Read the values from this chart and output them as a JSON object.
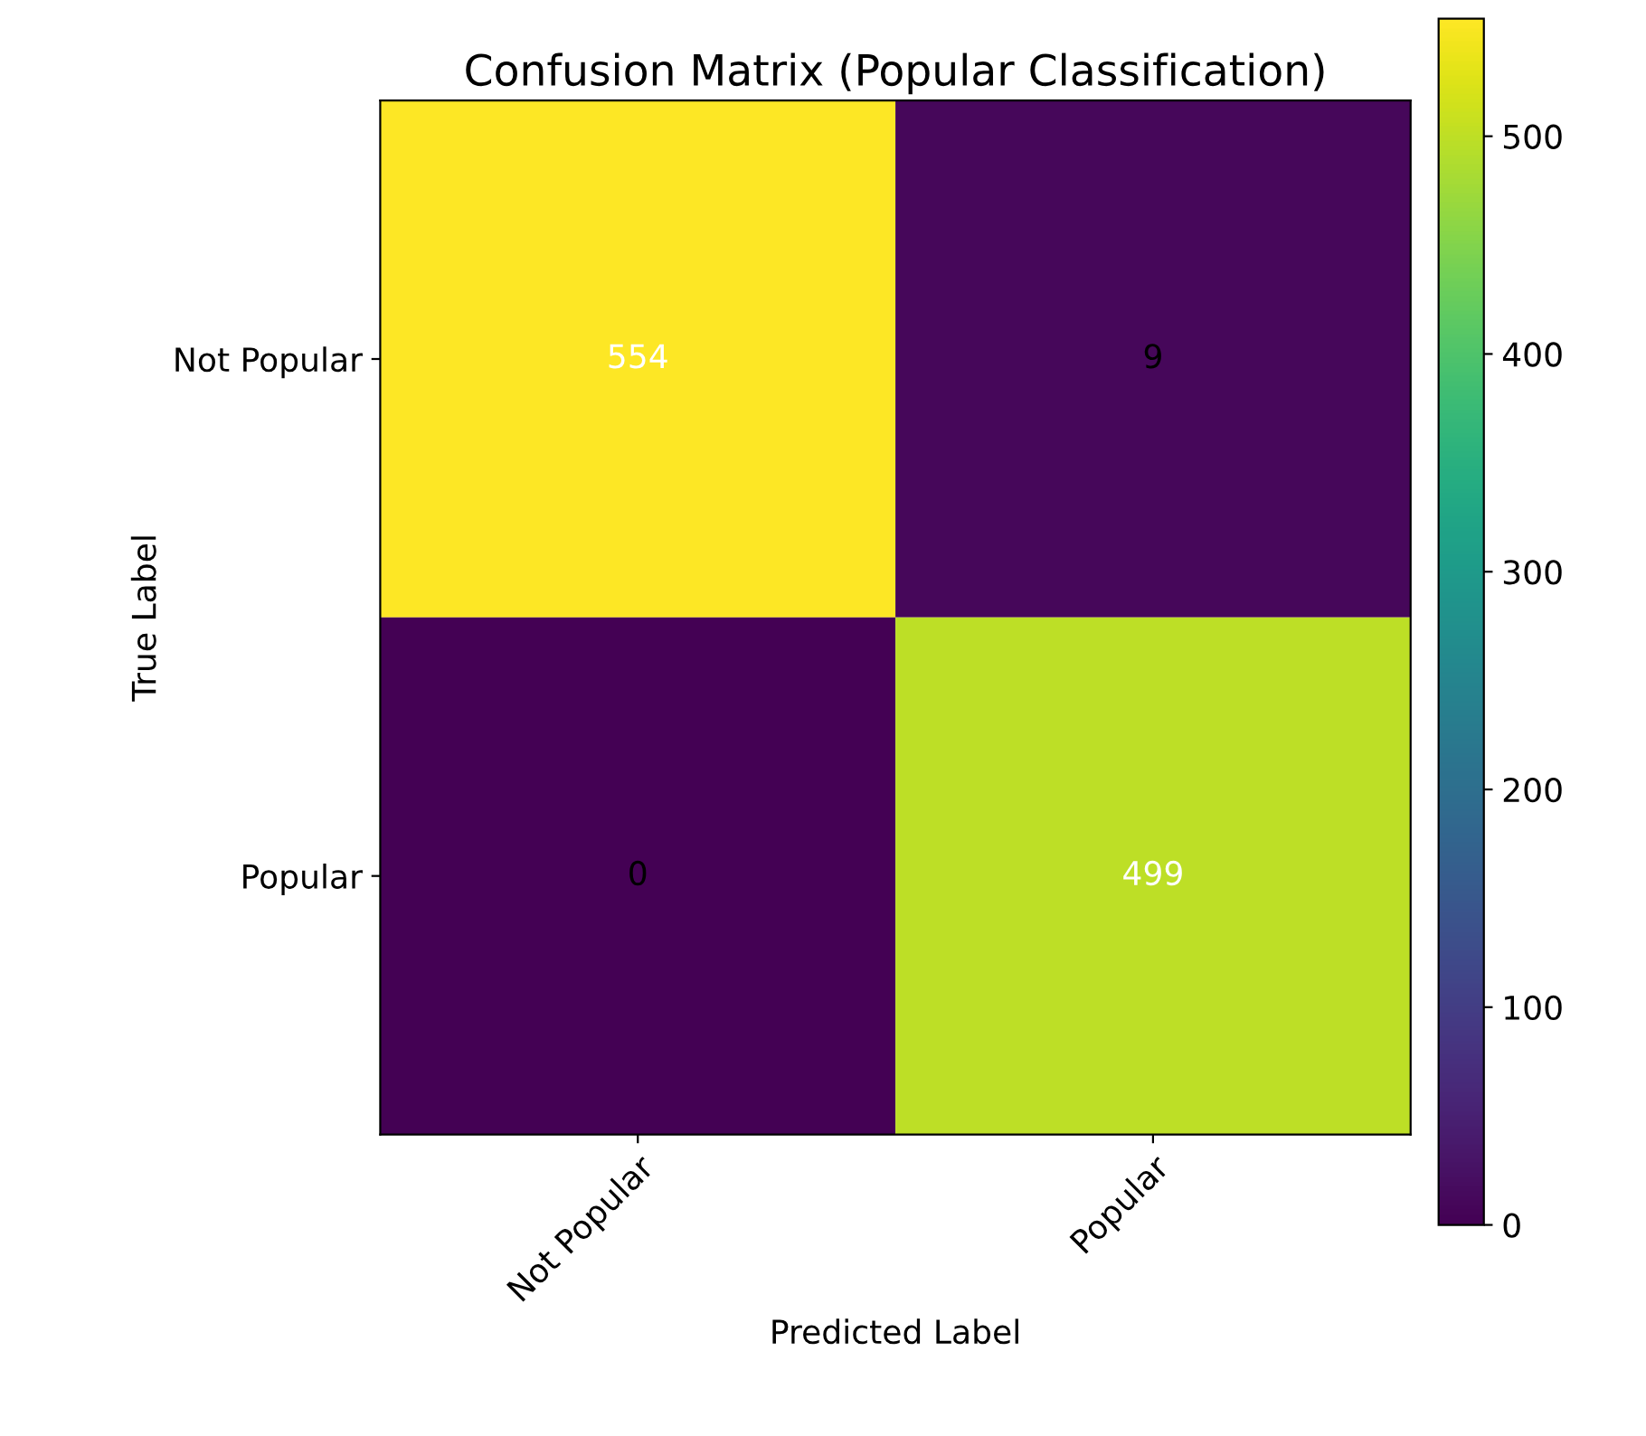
{
  "chart_data": {
    "type": "heatmap",
    "title": "Confusion Matrix (Popular Classification)",
    "xlabel": "Predicted Label",
    "ylabel": "True Label",
    "categories": [
      "Not Popular",
      "Popular"
    ],
    "y_categories": [
      "Not Popular",
      "Popular"
    ],
    "cells": [
      [
        554,
        9
      ],
      [
        0,
        499
      ]
    ],
    "clim": [
      0,
      554
    ],
    "cticks": [
      0,
      100,
      200,
      300,
      400,
      500
    ],
    "data_labels": true,
    "grid": false
  }
}
